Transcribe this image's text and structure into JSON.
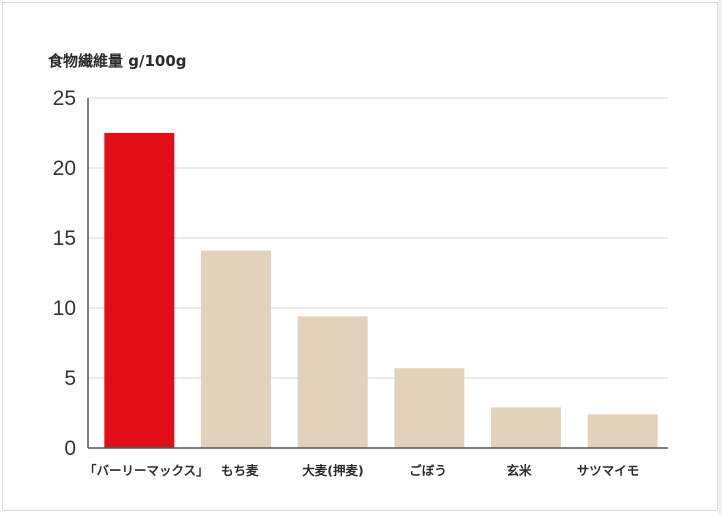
{
  "chart_data": {
    "type": "bar",
    "title": "",
    "ylabel": "食物繊維量 g/100g",
    "xlabel": "",
    "ylim": [
      0,
      25
    ],
    "yticks": [
      0,
      5,
      10,
      15,
      20,
      25
    ],
    "grid": true,
    "categories": [
      "「バーリーマックス」",
      "もち麦",
      "大麦(押麦)",
      "ごぼう",
      "玄米",
      "サツマイモ"
    ],
    "values": [
      22.5,
      14.1,
      9.4,
      5.7,
      2.9,
      2.4
    ],
    "colors": {
      "highlight": "#e20e17",
      "bar": "#e2d2bb",
      "grid": "#d9d9d9",
      "axis": "#555555"
    },
    "highlight_index": 0
  }
}
